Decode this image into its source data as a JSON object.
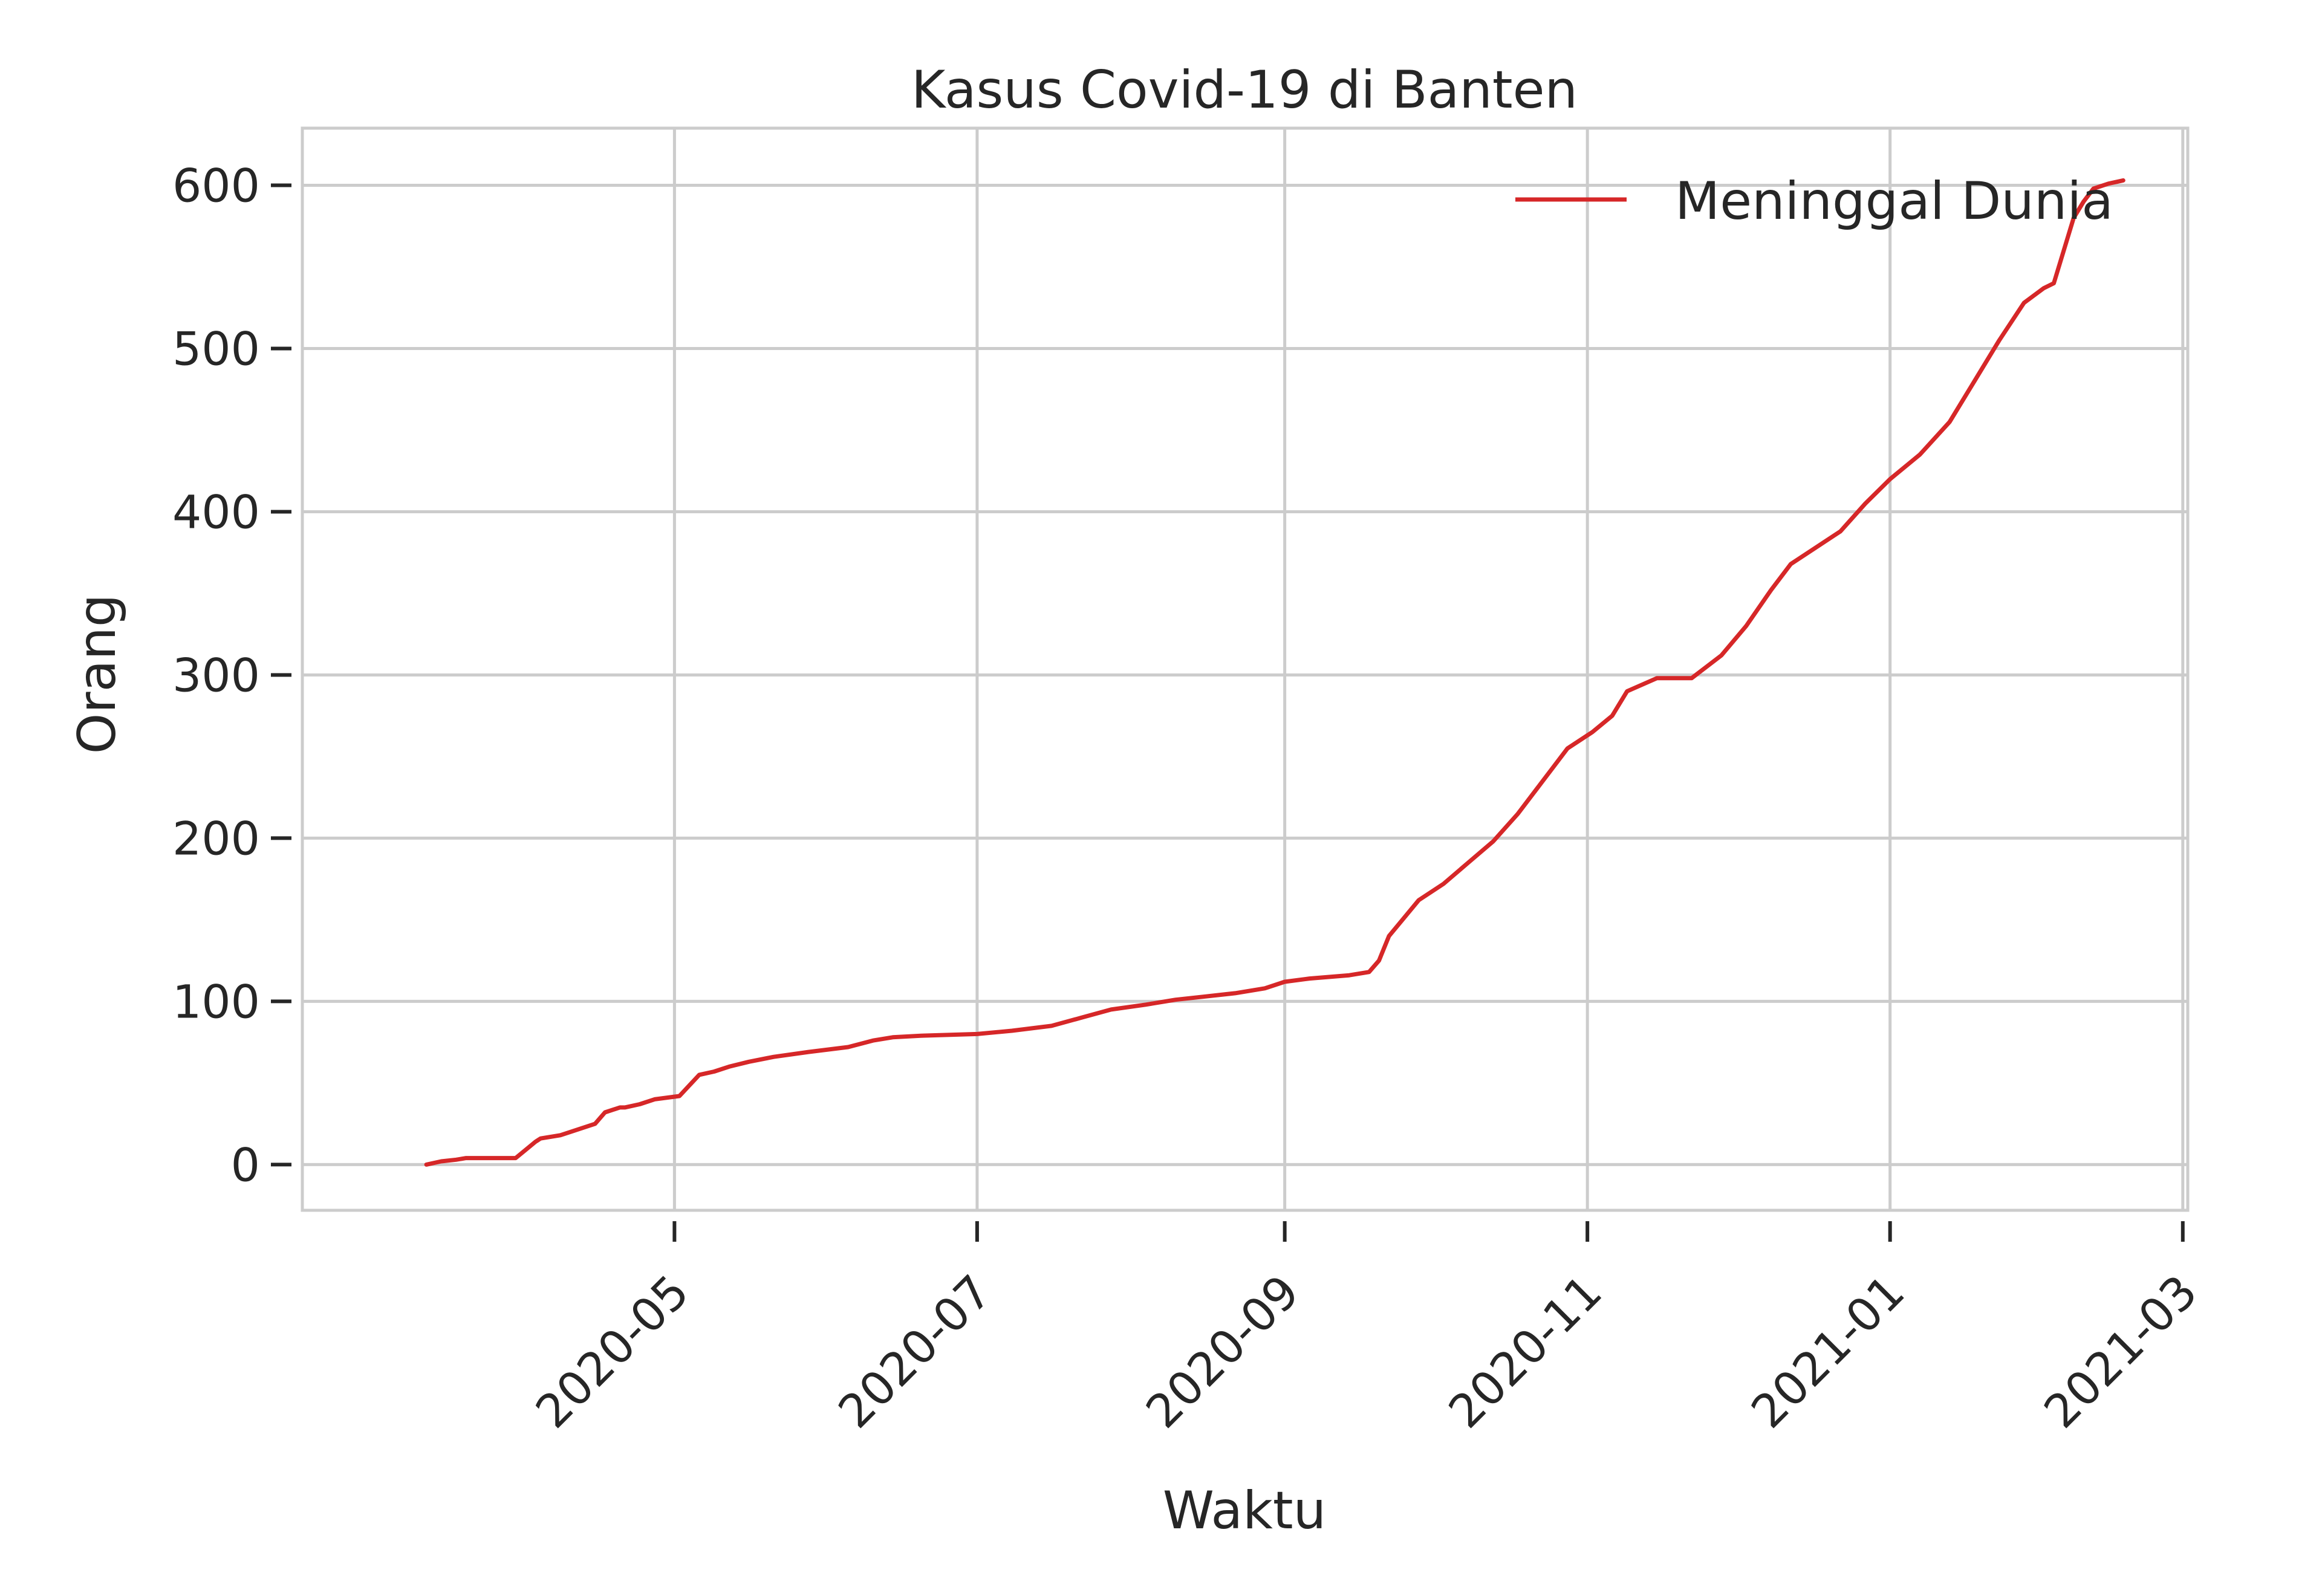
{
  "chart_data": {
    "type": "line",
    "title": "Kasus Covid-19 di Banten",
    "xlabel": "Waktu",
    "ylabel": "Orang",
    "xlim": [
      "2020-02-16",
      "2021-03-02"
    ],
    "ylim": [
      -28,
      635
    ],
    "grid": true,
    "legend_position": "top-right",
    "x_ticks": [
      "2020-05",
      "2020-07",
      "2020-09",
      "2020-11",
      "2021-01",
      "2021-03"
    ],
    "x_tick_dates": [
      "2020-05-01",
      "2020-07-01",
      "2020-09-01",
      "2020-11-01",
      "2021-01-01",
      "2021-03-01"
    ],
    "y_ticks": [
      0,
      100,
      200,
      300,
      400,
      500,
      600
    ],
    "series": [
      {
        "name": "Meninggal Dunia",
        "color": "#d62728",
        "x": [
          "2020-03-12",
          "2020-03-15",
          "2020-03-18",
          "2020-03-20",
          "2020-03-25",
          "2020-03-30",
          "2020-04-03",
          "2020-04-04",
          "2020-04-08",
          "2020-04-10",
          "2020-04-15",
          "2020-04-17",
          "2020-04-20",
          "2020-04-21",
          "2020-04-24",
          "2020-04-27",
          "2020-05-02",
          "2020-05-06",
          "2020-05-09",
          "2020-05-12",
          "2020-05-16",
          "2020-05-21",
          "2020-05-28",
          "2020-06-05",
          "2020-06-10",
          "2020-06-14",
          "2020-06-20",
          "2020-07-01",
          "2020-07-08",
          "2020-07-16",
          "2020-07-22",
          "2020-07-28",
          "2020-08-04",
          "2020-08-10",
          "2020-08-16",
          "2020-08-22",
          "2020-08-28",
          "2020-09-01",
          "2020-09-06",
          "2020-09-14",
          "2020-09-18",
          "2020-09-20",
          "2020-09-22",
          "2020-09-28",
          "2020-10-03",
          "2020-10-08",
          "2020-10-13",
          "2020-10-18",
          "2020-10-23",
          "2020-10-28",
          "2020-11-02",
          "2020-11-06",
          "2020-11-09",
          "2020-11-15",
          "2020-11-22",
          "2020-11-28",
          "2020-12-03",
          "2020-12-08",
          "2020-12-12",
          "2020-12-17",
          "2020-12-22",
          "2020-12-27",
          "2021-01-01",
          "2021-01-07",
          "2021-01-13",
          "2021-01-18",
          "2021-01-23",
          "2021-01-28",
          "2021-02-01",
          "2021-02-03",
          "2021-02-05",
          "2021-02-07",
          "2021-02-09",
          "2021-02-11",
          "2021-02-14",
          "2021-02-17"
        ],
        "values": [
          0,
          2,
          3,
          4,
          4,
          4,
          14,
          16,
          18,
          20,
          25,
          32,
          35,
          35,
          37,
          40,
          42,
          55,
          57,
          60,
          63,
          66,
          69,
          72,
          76,
          78,
          79,
          80,
          82,
          85,
          90,
          95,
          98,
          101,
          103,
          105,
          108,
          112,
          114,
          116,
          118,
          125,
          140,
          162,
          172,
          185,
          198,
          215,
          235,
          255,
          265,
          275,
          290,
          298,
          298,
          312,
          330,
          352,
          368,
          378,
          388,
          405,
          420,
          435,
          455,
          480,
          505,
          528,
          537,
          540,
          560,
          580,
          590,
          598,
          601,
          603
        ]
      }
    ]
  }
}
